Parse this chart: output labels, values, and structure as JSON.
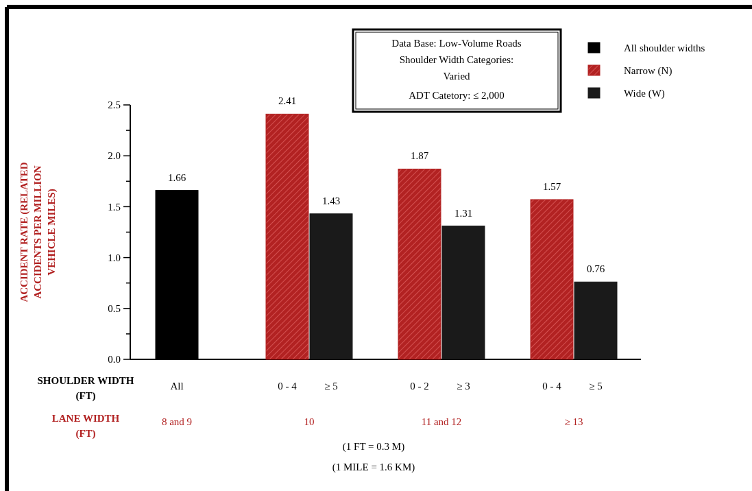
{
  "chart_data": {
    "type": "bar",
    "categories": [
      "All",
      "0 - 4",
      "≥ 5",
      "0 - 2",
      "≥ 3",
      "0 - 4",
      "≥ 5"
    ],
    "series": [
      {
        "name": "All shoulder widths",
        "color": "#000000",
        "values": [
          1.66,
          null,
          null,
          null,
          null,
          null,
          null
        ]
      },
      {
        "name": "Narrow (N)",
        "color": "#b22222",
        "values": [
          null,
          2.41,
          null,
          1.87,
          null,
          1.57,
          null
        ]
      },
      {
        "name": "Wide (W)",
        "color": "#1a1a1a",
        "values": [
          null,
          null,
          1.43,
          null,
          1.31,
          null,
          0.76
        ]
      }
    ],
    "xlabel": "SHOULDER WIDTH (FT)",
    "ylabel": "ACCIDENT RATE (RELATED ACCIDENTS PER MILLION VEHICLE MILES)",
    "ylim": [
      0,
      2.5
    ],
    "yticks": [
      {
        "value": 0,
        "label": "0.0"
      },
      {
        "value": 0.25,
        "label": null
      },
      {
        "value": 0.5,
        "label": "0.5"
      },
      {
        "value": 0.75,
        "label": null
      },
      {
        "value": 1,
        "label": "1.0"
      },
      {
        "value": 1.25,
        "label": null
      },
      {
        "value": 1.5,
        "label": "1.5"
      },
      {
        "value": 1.75,
        "label": null
      },
      {
        "value": 2,
        "label": "2.0"
      },
      {
        "value": 2.25,
        "label": null
      },
      {
        "value": 2.5,
        "label": "2.5"
      }
    ],
    "data_labels": true,
    "legend": "top right",
    "grid": false,
    "annotations": [
      "Data Base: Low-Volume Roads",
      "Shoulder Width Categories: Varied",
      "ADT Catetory: ≤ 2,000",
      "LANE WIDTH (FT)",
      "8 and 9",
      "10",
      "11 and 12",
      "≥ 13",
      "(1 FT = 0.3 M)",
      "(1 MILE = 1.6 KM)"
    ]
  }
}
